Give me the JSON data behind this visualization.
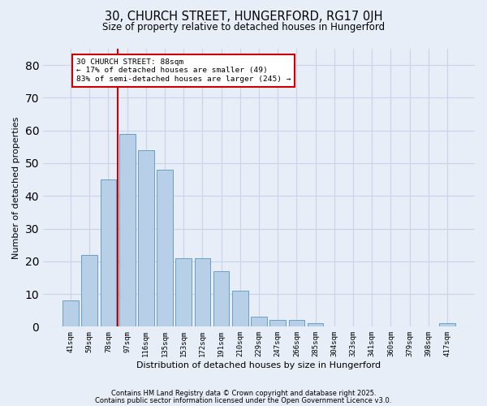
{
  "title1": "30, CHURCH STREET, HUNGERFORD, RG17 0JH",
  "title2": "Size of property relative to detached houses in Hungerford",
  "xlabel": "Distribution of detached houses by size in Hungerford",
  "ylabel": "Number of detached properties",
  "categories": [
    "41sqm",
    "59sqm",
    "78sqm",
    "97sqm",
    "116sqm",
    "135sqm",
    "153sqm",
    "172sqm",
    "191sqm",
    "210sqm",
    "229sqm",
    "247sqm",
    "266sqm",
    "285sqm",
    "304sqm",
    "323sqm",
    "341sqm",
    "360sqm",
    "379sqm",
    "398sqm",
    "417sqm"
  ],
  "values": [
    8,
    22,
    45,
    59,
    54,
    48,
    21,
    21,
    17,
    11,
    3,
    2,
    2,
    1,
    0,
    0,
    0,
    0,
    0,
    0,
    1
  ],
  "bar_color": "#b8cfe8",
  "bar_edge_color": "#6a9fc8",
  "vline_x": 2.5,
  "vline_color": "#cc0000",
  "annotation_text": "30 CHURCH STREET: 88sqm\n← 17% of detached houses are smaller (49)\n83% of semi-detached houses are larger (245) →",
  "annotation_box_color": "#ffffff",
  "annotation_box_edge": "#cc0000",
  "ylim": [
    0,
    85
  ],
  "yticks": [
    0,
    10,
    20,
    30,
    40,
    50,
    60,
    70,
    80
  ],
  "grid_color": "#c8d4e8",
  "background_color": "#e8eef8",
  "footer1": "Contains HM Land Registry data © Crown copyright and database right 2025.",
  "footer2": "Contains public sector information licensed under the Open Government Licence v3.0."
}
